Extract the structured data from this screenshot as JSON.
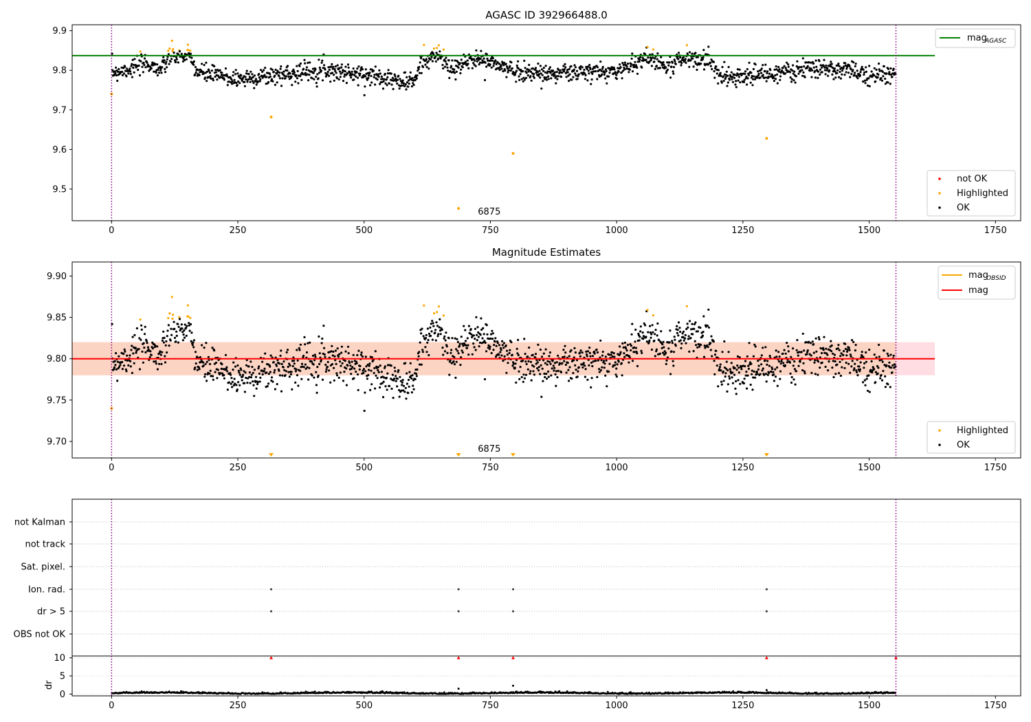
{
  "figure": {
    "title": "AGASC ID 392966488.0"
  },
  "chart_data": [
    {
      "type": "scatter",
      "title": "AGASC ID 392966488.0",
      "xlim": [
        -78,
        1800
      ],
      "ylim": [
        9.42,
        9.915
      ],
      "xticks": [
        0,
        250,
        500,
        750,
        1000,
        1250,
        1500,
        1750
      ],
      "yticks": [
        9.5,
        9.6,
        9.7,
        9.8,
        9.9
      ],
      "ytick_labels": [
        "9.5",
        "9.6",
        "9.7",
        "9.8",
        "9.9"
      ],
      "annotation": "6875",
      "annotation_x": 775,
      "mag_agasc": 9.837,
      "mag_agasc_xrange": [
        -78,
        1630
      ],
      "obs_boundaries": [
        0,
        1553
      ],
      "outliers": [
        {
          "x": 0,
          "y": 9.74
        },
        {
          "x": 316,
          "y": 9.682
        },
        {
          "x": 687,
          "y": 9.451
        },
        {
          "x": 795,
          "y": 9.59
        },
        {
          "x": 1297,
          "y": 9.628
        }
      ],
      "legend_line": {
        "label": "mag",
        "sub": "AGASC"
      },
      "legend_points": [
        "not OK",
        "Highlighted",
        "OK"
      ],
      "colors": {
        "ok": "#000000",
        "highlighted": "#ffa500",
        "not_ok": "#ff0000",
        "mag_agasc": "#008000"
      }
    },
    {
      "type": "scatter",
      "title": "Magnitude Estimates",
      "xlim": [
        -78,
        1800
      ],
      "ylim": [
        9.68,
        9.917
      ],
      "xticks": [
        0,
        250,
        500,
        750,
        1000,
        1250,
        1500,
        1750
      ],
      "yticks": [
        9.7,
        9.75,
        9.8,
        9.85,
        9.9
      ],
      "ytick_labels": [
        "9.70",
        "9.75",
        "9.80",
        "9.85",
        "9.90"
      ],
      "annotation": "6875",
      "annotation_x": 775,
      "mag": 9.8,
      "mag_band": [
        9.78,
        9.82
      ],
      "mag_xrange": [
        -78,
        1630
      ],
      "offscale_markers_x": [
        316,
        687,
        795,
        1297
      ],
      "legend_lines": [
        {
          "label": "mag",
          "sub": "OBSID"
        },
        {
          "label": "mag",
          "sub": ""
        }
      ],
      "legend_points": [
        "Highlighted",
        "OK"
      ],
      "colors": {
        "ok": "#000000",
        "highlighted": "#ffa500",
        "mag_obsid": "#ffa500",
        "mag": "#ff0000",
        "band": "#fcd3c0",
        "band_outer": "#ffdde3"
      }
    },
    {
      "type": "scatter",
      "title": "",
      "xlim": [
        -78,
        1800
      ],
      "xticks": [
        0,
        250,
        500,
        750,
        1000,
        1250,
        1500,
        1750
      ],
      "flag_labels": [
        "not Kalman",
        "not track",
        "Sat. pixel.",
        "Ion. rad.",
        "dr > 5",
        "OBS not OK"
      ],
      "flag_points": {
        "Ion. rad.": [
          316,
          687,
          795,
          1297
        ],
        "dr > 5": [
          316,
          687,
          795,
          1297
        ]
      },
      "dr_ylabel": "dr",
      "dr_yticks": [
        0,
        5,
        10
      ],
      "dr_ylim": [
        -0.5,
        10.5
      ],
      "dr_capped_x": [
        316,
        687,
        795,
        1297,
        1553
      ],
      "dr_typical_max": 0.6,
      "dr_spikes": [
        {
          "x": 687,
          "y": 1.5
        },
        {
          "x": 795,
          "y": 2.3
        },
        {
          "x": 1297,
          "y": 1.1
        }
      ]
    }
  ]
}
